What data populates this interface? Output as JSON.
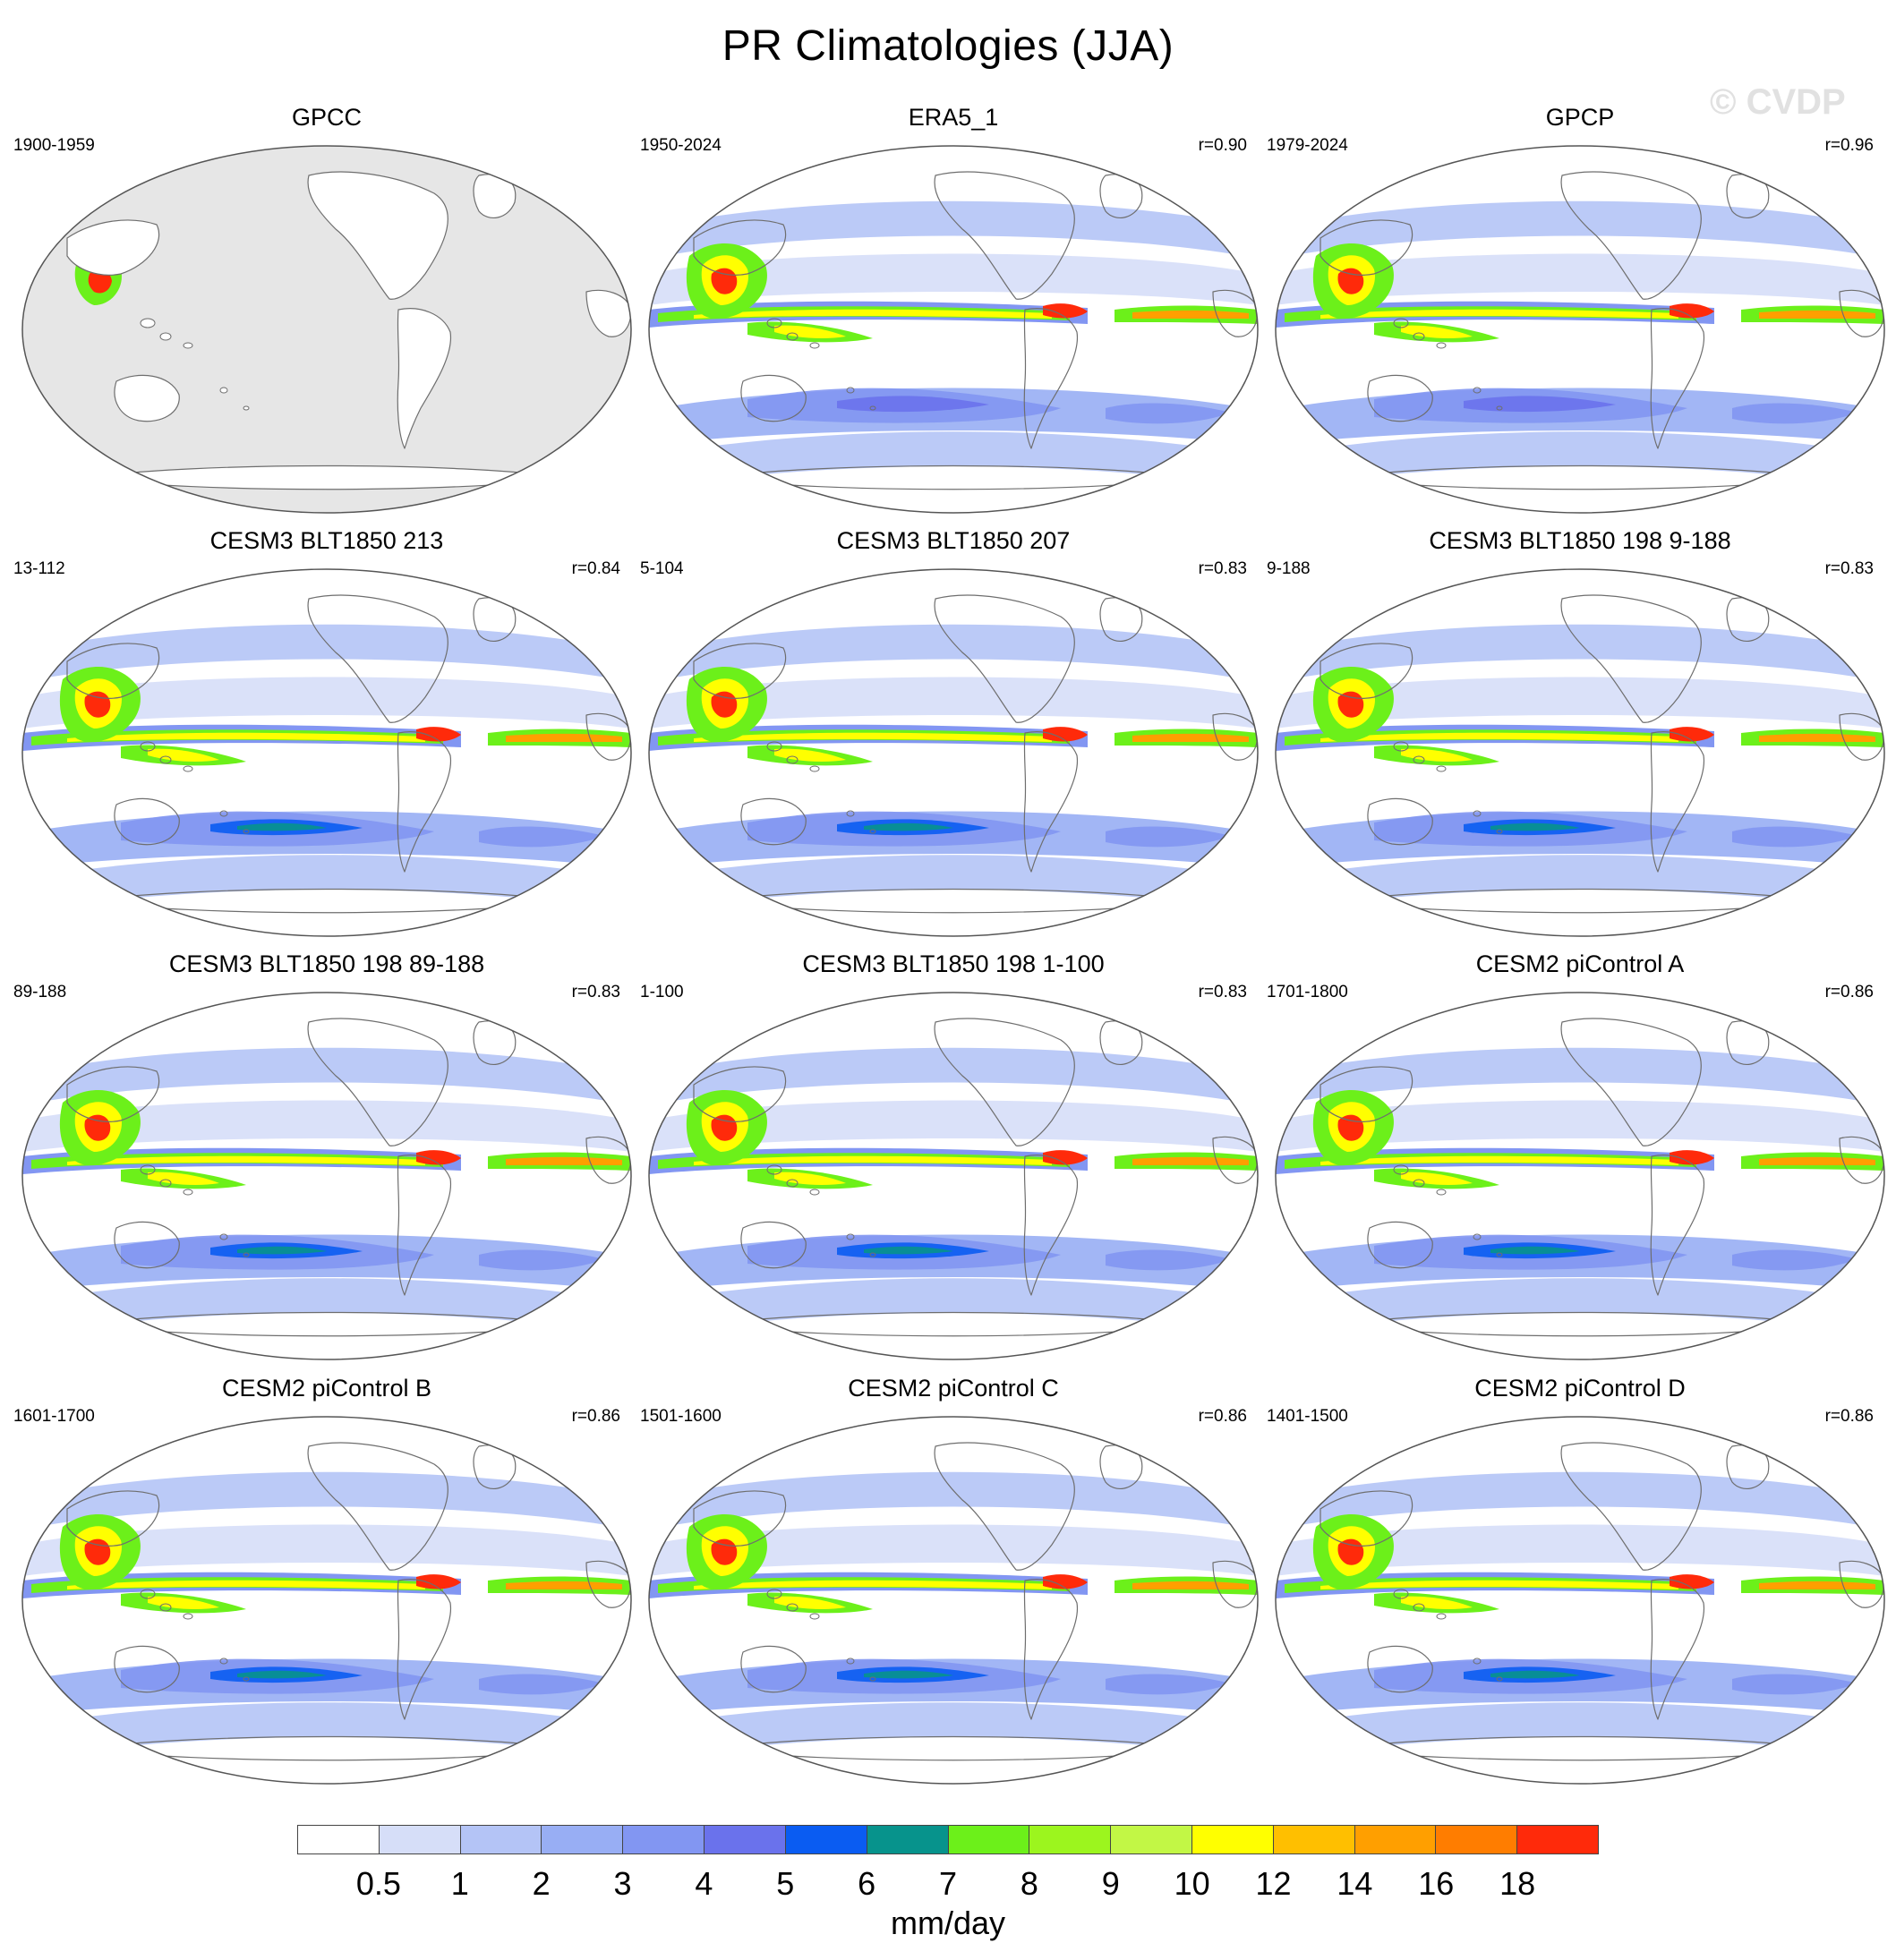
{
  "figure": {
    "title": "PR Climatologies (JJA)",
    "watermark": "© CVDP"
  },
  "panels": [
    {
      "title": "GPCC",
      "years": "1900-1959",
      "r": "",
      "kind": "land"
    },
    {
      "title": "ERA5_1",
      "years": "1950-2024",
      "r": "r=0.90",
      "kind": "obs"
    },
    {
      "title": "GPCP",
      "years": "1979-2024",
      "r": "r=0.96",
      "kind": "obs"
    },
    {
      "title": "CESM3 BLT1850 213",
      "years": "13-112",
      "r": "r=0.84",
      "kind": "model"
    },
    {
      "title": "CESM3 BLT1850 207",
      "years": "5-104",
      "r": "r=0.83",
      "kind": "model"
    },
    {
      "title": "CESM3 BLT1850 198 9-188",
      "years": "9-188",
      "r": "r=0.83",
      "kind": "model"
    },
    {
      "title": "CESM3 BLT1850 198 89-188",
      "years": "89-188",
      "r": "r=0.83",
      "kind": "model"
    },
    {
      "title": "CESM3 BLT1850 198 1-100",
      "years": "1-100",
      "r": "r=0.83",
      "kind": "model"
    },
    {
      "title": "CESM2 piControl A",
      "years": "1701-1800",
      "r": "r=0.86",
      "kind": "model2"
    },
    {
      "title": "CESM2 piControl B",
      "years": "1601-1700",
      "r": "r=0.86",
      "kind": "model2"
    },
    {
      "title": "CESM2 piControl C",
      "years": "1501-1600",
      "r": "r=0.86",
      "kind": "model2"
    },
    {
      "title": "CESM2 piControl D",
      "years": "1401-1500",
      "r": "r=0.86",
      "kind": "model2"
    }
  ],
  "colorbar": {
    "units": "mm/day",
    "labels": [
      "0.5",
      "1",
      "2",
      "3",
      "4",
      "5",
      "6",
      "7",
      "8",
      "9",
      "10",
      "12",
      "14",
      "16",
      "18"
    ],
    "colors": [
      "#ffffff",
      "#d6def8",
      "#b4c4f6",
      "#98aef4",
      "#8296f2",
      "#6a72ec",
      "#0a5cf2",
      "#07938c",
      "#6cf01a",
      "#9cf51e",
      "#c2f745",
      "#ffff00",
      "#ffbf00",
      "#ff9f00",
      "#ff7d00",
      "#ff2a0a"
    ]
  }
}
